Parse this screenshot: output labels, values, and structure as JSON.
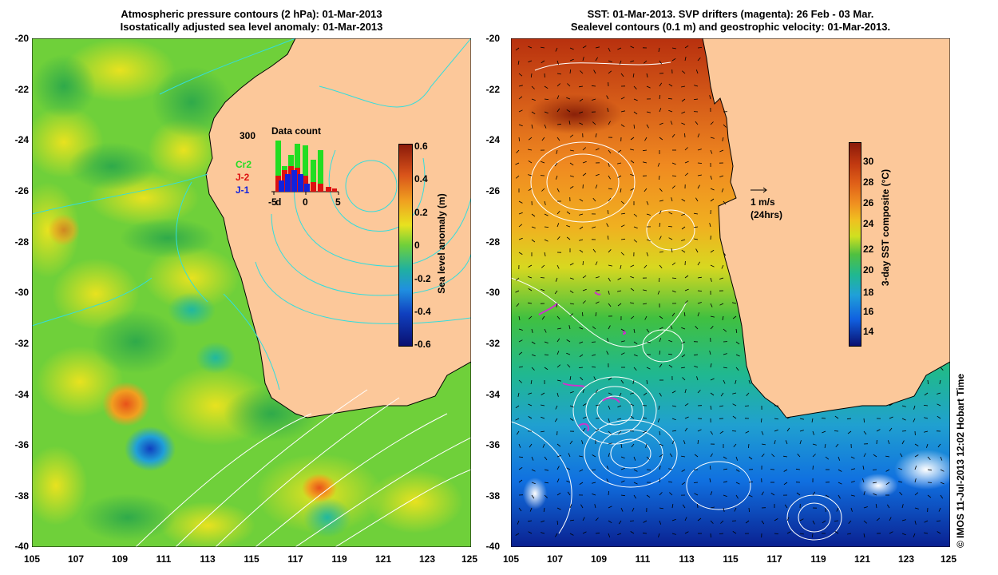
{
  "left_panel": {
    "title_line1": "Atmospheric pressure contours (2 hPa): 01-Mar-2013",
    "title_line2": "Isostatically adjusted sea level anomaly: 01-Mar-2013",
    "colorbar_label": "Sea level anomaly (m)",
    "colorbar_ticks": [
      "0.6",
      "0.4",
      "0.2",
      "0",
      "-0.2",
      "-0.4",
      "-0.6"
    ],
    "inset": {
      "title": "Data count",
      "y_max_label": "300",
      "legend": [
        {
          "label": "Cr2",
          "color": "#22dd22"
        },
        {
          "label": "J-2",
          "color": "#dd1111"
        },
        {
          "label": "J-1",
          "color": "#1122dd"
        }
      ],
      "x_ticks": [
        "-5",
        "d",
        "0",
        "5"
      ]
    }
  },
  "right_panel": {
    "title_line1": "SST: 01-Mar-2013. SVP drifters (magenta): 26 Feb - 03 Mar.",
    "title_line2": "Sealevel contours (0.1 m) and geostrophic velocity: 01-Mar-2013.",
    "colorbar_label": "3-day SST composite (°C)",
    "colorbar_ticks": [
      "30",
      "28",
      "26",
      "24",
      "22",
      "20",
      "18",
      "16",
      "14"
    ],
    "scale_label_line1": "1 m/s",
    "scale_label_line2": "(24hrs)"
  },
  "axes": {
    "y_ticks": [
      "-20",
      "-22",
      "-24",
      "-26",
      "-28",
      "-30",
      "-32",
      "-34",
      "-36",
      "-38",
      "-40"
    ],
    "x_ticks": [
      "105",
      "107",
      "109",
      "111",
      "113",
      "115",
      "117",
      "119",
      "121",
      "123",
      "125"
    ]
  },
  "credit": "© IMOS 11-Jul-2013 12:02 Hobart Time",
  "colors": {
    "land": "#fcc89a",
    "sla_base": "#6fd03a",
    "coast": "#000000",
    "pressure_contour": "#33dddd"
  }
}
